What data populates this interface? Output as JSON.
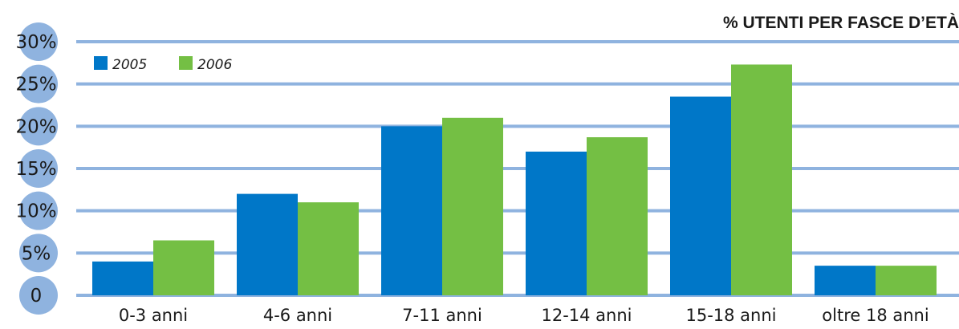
{
  "chart_data": {
    "type": "bar",
    "title": "% UTENTI PER FASCE D’ETÀ",
    "categories": [
      "0-3 anni",
      "4-6 anni",
      "7-11 anni",
      "12-14 anni",
      "15-18 anni",
      "oltre 18 anni"
    ],
    "series": [
      {
        "name": "2005",
        "color": "#0077c8",
        "values": [
          4,
          12,
          20,
          17,
          23.5,
          3.5
        ]
      },
      {
        "name": "2006",
        "color": "#74bf44",
        "values": [
          6.5,
          11,
          21,
          18.7,
          27.3,
          3.5
        ]
      }
    ],
    "yticks": [
      {
        "value": 0,
        "label": "0"
      },
      {
        "value": 5,
        "label": "5%"
      },
      {
        "value": 10,
        "label": "10%"
      },
      {
        "value": 15,
        "label": "15%"
      },
      {
        "value": 20,
        "label": "20%"
      },
      {
        "value": 25,
        "label": "25%"
      },
      {
        "value": 30,
        "label": "30%"
      }
    ],
    "ylim": [
      0,
      30
    ],
    "grid": true,
    "legend_position": "top-left",
    "colors": {
      "grid": "#8fb3df",
      "tick_badge": "#8fb3df"
    }
  }
}
